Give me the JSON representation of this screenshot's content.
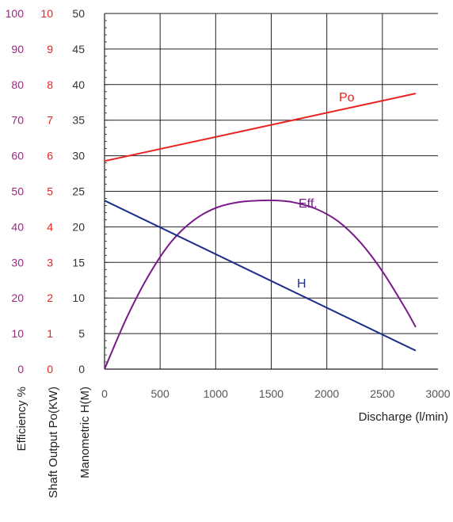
{
  "chart_data": {
    "type": "line",
    "xlabel": "Discharge (l/min)",
    "xlim": [
      0,
      3000
    ],
    "x_ticks": [
      "0",
      "500",
      "1000",
      "1500",
      "2000",
      "2500",
      "3000"
    ],
    "grid": true,
    "axes": [
      {
        "key": "eff",
        "label": "Efficiency %",
        "color": "#9b2b80",
        "ylim": [
          0,
          100
        ],
        "ticks": [
          "0",
          "10",
          "20",
          "30",
          "40",
          "50",
          "60",
          "70",
          "80",
          "90",
          "100"
        ]
      },
      {
        "key": "po",
        "label": "Shaft Output Po(KW)",
        "color": "#e8231f",
        "ylim": [
          0,
          10
        ],
        "ticks": [
          "0",
          "1",
          "2",
          "3",
          "4",
          "5",
          "6",
          "7",
          "8",
          "9",
          "10"
        ]
      },
      {
        "key": "h",
        "label": "Manometric H(M)",
        "color": "#333333",
        "ylim": [
          0,
          50
        ],
        "ticks": [
          "0",
          "5",
          "10",
          "15",
          "20",
          "25",
          "30",
          "35",
          "40",
          "45",
          "50"
        ]
      }
    ],
    "series": [
      {
        "name": "Po",
        "axis": "po",
        "color": "#e8231f",
        "x": [
          0,
          2800
        ],
        "y": [
          5.85,
          7.75
        ]
      },
      {
        "name": "Eff.",
        "axis": "eff",
        "color": "#7a1a8a",
        "x": [
          0,
          200,
          400,
          600,
          800,
          1000,
          1200,
          1400,
          1550,
          1700,
          1900,
          2100,
          2300,
          2500,
          2700,
          2800
        ],
        "y": [
          0,
          14.5,
          26.5,
          35.8,
          41.8,
          45.3,
          46.9,
          47.4,
          47.4,
          46.9,
          45.1,
          41.6,
          35.7,
          27.5,
          17.4,
          11.8
        ]
      },
      {
        "name": "H",
        "axis": "h",
        "color": "#1f2d8a",
        "x": [
          0,
          2800
        ],
        "y": [
          23.7,
          2.6
        ]
      }
    ]
  }
}
